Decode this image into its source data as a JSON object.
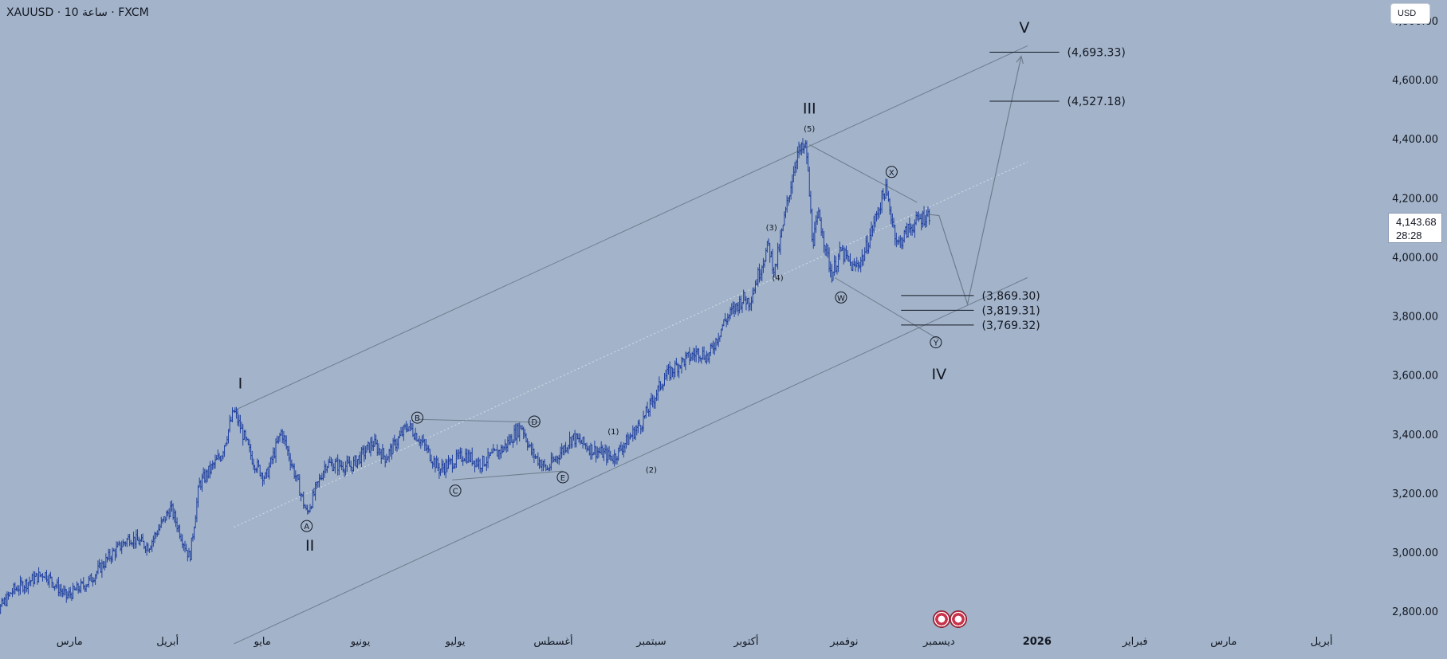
{
  "header": {
    "symbol": "XAUUSD",
    "separator": "·",
    "timeframe": "10 ساعة",
    "exchange": "FXCM"
  },
  "currency_button": {
    "label": "USD"
  },
  "last_price": {
    "value": "4,143.68",
    "countdown": "28:28"
  },
  "colors": {
    "background": "#a3b4ca",
    "candle": "#1f3f9e",
    "channel": "#6f7c8e",
    "text": "#131722"
  },
  "chart_data": {
    "type": "candlestick",
    "y_axis": {
      "ticks": [
        2800,
        3000,
        3200,
        3400,
        3600,
        3800,
        4000,
        4200,
        4400,
        4600,
        4800
      ],
      "tick_labels": [
        "2,800.00",
        "3,000.00",
        "3,200.00",
        "3,400.00",
        "3,600.00",
        "3,800.00",
        "4,000.00",
        "4,200.00",
        "4,400.00",
        "4,600.00",
        "4,800.00"
      ],
      "ylim": [
        2760,
        4870
      ]
    },
    "x_axis": {
      "xlim": [
        "2025-02-07",
        "2026-04-22"
      ],
      "ticks": [
        {
          "date": "2025-02-01",
          "label": "فبراير",
          "bold": false
        },
        {
          "date": "2025-03-01",
          "label": "مارس",
          "bold": false
        },
        {
          "date": "2025-04-01",
          "label": "أبريل",
          "bold": false
        },
        {
          "date": "2025-05-01",
          "label": "مايو",
          "bold": false
        },
        {
          "date": "2025-06-01",
          "label": "يونيو",
          "bold": false
        },
        {
          "date": "2025-07-01",
          "label": "يوليو",
          "bold": false
        },
        {
          "date": "2025-08-01",
          "label": "أغسطس",
          "bold": false
        },
        {
          "date": "2025-09-01",
          "label": "سبتمبر",
          "bold": false
        },
        {
          "date": "2025-10-01",
          "label": "أكتوبر",
          "bold": false
        },
        {
          "date": "2025-11-01",
          "label": "نوفمبر",
          "bold": false
        },
        {
          "date": "2025-12-01",
          "label": "ديسمبر",
          "bold": false
        },
        {
          "date": "2026-01-01",
          "label": "2026",
          "bold": true
        },
        {
          "date": "2026-02-01",
          "label": "فبراير",
          "bold": false
        },
        {
          "date": "2026-03-01",
          "label": "مارس",
          "bold": false
        },
        {
          "date": "2026-04-01",
          "label": "أبريل",
          "bold": false
        }
      ]
    },
    "price_path": [
      {
        "date": "2025-02-03",
        "price": 2750
      },
      {
        "date": "2025-02-11",
        "price": 2870
      },
      {
        "date": "2025-02-21",
        "price": 2930
      },
      {
        "date": "2025-02-28",
        "price": 2850
      },
      {
        "date": "2025-03-07",
        "price": 2900
      },
      {
        "date": "2025-03-14",
        "price": 2990
      },
      {
        "date": "2025-03-20",
        "price": 3050
      },
      {
        "date": "2025-03-26",
        "price": 3020
      },
      {
        "date": "2025-04-02",
        "price": 3150
      },
      {
        "date": "2025-04-08",
        "price": 2980
      },
      {
        "date": "2025-04-11",
        "price": 3230
      },
      {
        "date": "2025-04-18",
        "price": 3330
      },
      {
        "date": "2025-04-22",
        "price": 3480
      },
      {
        "date": "2025-04-28",
        "price": 3310
      },
      {
        "date": "2025-05-02",
        "price": 3250
      },
      {
        "date": "2025-05-07",
        "price": 3410
      },
      {
        "date": "2025-05-12",
        "price": 3240
      },
      {
        "date": "2025-05-15",
        "price": 3130
      },
      {
        "date": "2025-05-21",
        "price": 3300
      },
      {
        "date": "2025-05-29",
        "price": 3290
      },
      {
        "date": "2025-06-05",
        "price": 3370
      },
      {
        "date": "2025-06-09",
        "price": 3320
      },
      {
        "date": "2025-06-16",
        "price": 3430
      },
      {
        "date": "2025-06-20",
        "price": 3380
      },
      {
        "date": "2025-06-26",
        "price": 3280
      },
      {
        "date": "2025-07-04",
        "price": 3330
      },
      {
        "date": "2025-07-09",
        "price": 3300
      },
      {
        "date": "2025-07-16",
        "price": 3350
      },
      {
        "date": "2025-07-22",
        "price": 3430
      },
      {
        "date": "2025-07-25",
        "price": 3340
      },
      {
        "date": "2025-07-30",
        "price": 3280
      },
      {
        "date": "2025-08-07",
        "price": 3390
      },
      {
        "date": "2025-08-13",
        "price": 3350
      },
      {
        "date": "2025-08-20",
        "price": 3320
      },
      {
        "date": "2025-08-29",
        "price": 3440
      },
      {
        "date": "2025-09-05",
        "price": 3590
      },
      {
        "date": "2025-09-10",
        "price": 3640
      },
      {
        "date": "2025-09-16",
        "price": 3680
      },
      {
        "date": "2025-09-19",
        "price": 3660
      },
      {
        "date": "2025-09-24",
        "price": 3780
      },
      {
        "date": "2025-09-30",
        "price": 3860
      },
      {
        "date": "2025-10-02",
        "price": 3850
      },
      {
        "date": "2025-10-08",
        "price": 4040
      },
      {
        "date": "2025-10-10",
        "price": 3950
      },
      {
        "date": "2025-10-14",
        "price": 4180
      },
      {
        "date": "2025-10-17",
        "price": 4350
      },
      {
        "date": "2025-10-20",
        "price": 4370
      },
      {
        "date": "2025-10-22",
        "price": 4050
      },
      {
        "date": "2025-10-24",
        "price": 4140
      },
      {
        "date": "2025-10-28",
        "price": 3940
      },
      {
        "date": "2025-10-31",
        "price": 4020
      },
      {
        "date": "2025-11-04",
        "price": 3960
      },
      {
        "date": "2025-11-07",
        "price": 4000
      },
      {
        "date": "2025-11-13",
        "price": 4200
      },
      {
        "date": "2025-11-14",
        "price": 4230
      },
      {
        "date": "2025-11-18",
        "price": 4040
      },
      {
        "date": "2025-11-21",
        "price": 4090
      },
      {
        "date": "2025-11-25",
        "price": 4130
      },
      {
        "date": "2025-11-28",
        "price": 4143.68
      }
    ],
    "wave_labels": [
      {
        "text": "I",
        "style": "roman",
        "date": "2025-04-24",
        "price": 3555
      },
      {
        "text": "II",
        "style": "roman",
        "date": "2025-05-16",
        "price": 3005
      },
      {
        "text": "III",
        "style": "roman",
        "date": "2025-10-21",
        "price": 4485
      },
      {
        "text": "IV",
        "style": "roman",
        "date": "2025-12-01",
        "price": 3585
      },
      {
        "text": "V",
        "style": "roman",
        "date": "2025-12-28",
        "price": 4760
      },
      {
        "text": "A",
        "style": "circled",
        "date": "2025-05-15",
        "price": 3078
      },
      {
        "text": "B",
        "style": "circled",
        "date": "2025-06-19",
        "price": 3445
      },
      {
        "text": "C",
        "style": "circled",
        "date": "2025-07-01",
        "price": 3198
      },
      {
        "text": "D",
        "style": "circled",
        "date": "2025-07-26",
        "price": 3432
      },
      {
        "text": "E",
        "style": "circled",
        "date": "2025-08-04",
        "price": 3243
      },
      {
        "text": "W",
        "style": "circled",
        "date": "2025-10-31",
        "price": 3852
      },
      {
        "text": "X",
        "style": "circled",
        "date": "2025-11-16",
        "price": 4277
      },
      {
        "text": "Y",
        "style": "circled",
        "date": "2025-11-30",
        "price": 3700
      },
      {
        "text": "(1)",
        "style": "paren",
        "date": "2025-08-20",
        "price": 3400
      },
      {
        "text": "(2)",
        "style": "paren",
        "date": "2025-09-01",
        "price": 3270
      },
      {
        "text": "(3)",
        "style": "paren",
        "date": "2025-10-09",
        "price": 4090
      },
      {
        "text": "(4)",
        "style": "paren",
        "date": "2025-10-11",
        "price": 3920
      },
      {
        "text": "(5)",
        "style": "paren",
        "date": "2025-10-21",
        "price": 4425
      }
    ],
    "levels": [
      {
        "label": "(4,693.33)",
        "price": 4693.33,
        "from": "2025-12-17",
        "to": "2026-01-08"
      },
      {
        "label": "(4,527.18)",
        "price": 4527.18,
        "from": "2025-12-17",
        "to": "2026-01-08"
      },
      {
        "label": "(3,869.30)",
        "price": 3869.3,
        "from": "2025-11-19",
        "to": "2025-12-12"
      },
      {
        "label": "(3,819.31)",
        "price": 3819.31,
        "from": "2025-11-19",
        "to": "2025-12-12"
      },
      {
        "label": "(3,769.32)",
        "price": 3769.32,
        "from": "2025-11-19",
        "to": "2025-12-12"
      }
    ],
    "channel": {
      "upper": [
        {
          "date": "2025-04-22",
          "price": 3480
        },
        {
          "date": "2025-12-29",
          "price": 4715
        }
      ],
      "lower": [
        {
          "date": "2025-04-22",
          "price": 2690
        },
        {
          "date": "2025-12-29",
          "price": 3930
        }
      ],
      "middle": [
        {
          "date": "2025-04-22",
          "price": 3085
        },
        {
          "date": "2025-12-29",
          "price": 4322
        }
      ]
    },
    "pattern_lines": [
      [
        {
          "date": "2025-06-19",
          "price": 3450
        },
        {
          "date": "2025-07-28",
          "price": 3440
        }
      ],
      [
        {
          "date": "2025-06-30",
          "price": 3245
        },
        {
          "date": "2025-08-04",
          "price": 3275
        }
      ],
      [
        {
          "date": "2025-10-21",
          "price": 4380
        },
        {
          "date": "2025-11-24",
          "price": 4185
        }
      ],
      [
        {
          "date": "2025-10-29",
          "price": 3930
        },
        {
          "date": "2025-12-01",
          "price": 3720
        }
      ]
    ],
    "projection_path": [
      {
        "date": "2025-11-28",
        "price": 4143.68
      },
      {
        "date": "2025-12-01",
        "price": 4140
      },
      {
        "date": "2025-12-10",
        "price": 3840
      },
      {
        "date": "2025-12-27",
        "price": 4680
      }
    ],
    "event_markers": [
      {
        "date": "2025-11-28",
        "type": "us-flag-icon"
      },
      {
        "date": "2025-12-01",
        "type": "us-flag-icon"
      }
    ]
  }
}
